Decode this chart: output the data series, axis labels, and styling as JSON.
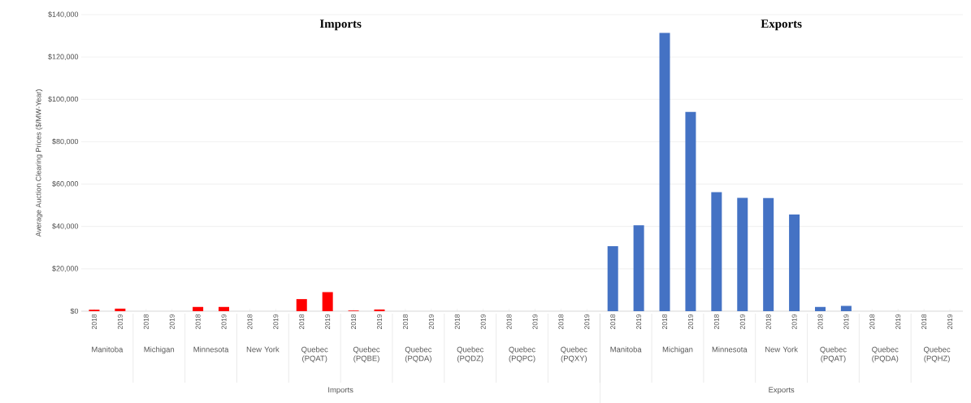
{
  "chart_data": {
    "type": "bar",
    "ylabel": "Average Auction Clearing Prices ($/MW-Year)",
    "categories": [
      "2018",
      "2019",
      "2018",
      "2019",
      "2018",
      "2019",
      "2018",
      "2019",
      "2018",
      "2019",
      "2018",
      "2019",
      "2018",
      "2019",
      "2018",
      "2019",
      "2018",
      "2019",
      "2018",
      "2019",
      "2018",
      "2019",
      "2018",
      "2019",
      "2018",
      "2019",
      "2018",
      "2019",
      "2018",
      "2019",
      "2018",
      "2019",
      "2018",
      "2019"
    ],
    "values": [
      700,
      1200,
      0,
      0,
      2000,
      2000,
      0,
      0,
      5700,
      9000,
      300,
      800,
      0,
      0,
      0,
      0,
      0,
      0,
      0,
      0,
      30700,
      40600,
      131400,
      94100,
      56200,
      53500,
      53400,
      45600,
      2000,
      2500,
      0,
      0,
      0,
      0
    ],
    "colors": [
      "#ff0000",
      "#ff0000",
      "#ff0000",
      "#ff0000",
      "#ff0000",
      "#ff0000",
      "#ff0000",
      "#ff0000",
      "#ff0000",
      "#ff0000",
      "#ff0000",
      "#ff0000",
      "#ff0000",
      "#ff0000",
      "#ff0000",
      "#ff0000",
      "#ff0000",
      "#ff0000",
      "#ff0000",
      "#ff0000",
      "#4472c4",
      "#4472c4",
      "#4472c4",
      "#4472c4",
      "#4472c4",
      "#4472c4",
      "#4472c4",
      "#4472c4",
      "#4472c4",
      "#4472c4",
      "#4472c4",
      "#4472c4",
      "#4472c4",
      "#4472c4"
    ],
    "ylim": [
      0,
      140000
    ],
    "yticks": [
      {
        "value": 0,
        "label": "$0"
      },
      {
        "value": 20000,
        "label": "$20,000"
      },
      {
        "value": 40000,
        "label": "$40,000"
      },
      {
        "value": 60000,
        "label": "$60,000"
      },
      {
        "value": 80000,
        "label": "$80,000"
      },
      {
        "value": 100000,
        "label": "$100,000"
      },
      {
        "value": 120000,
        "label": "$120,000"
      },
      {
        "value": 140000,
        "label": "$140,000"
      }
    ],
    "grid": "y",
    "annotations": [
      "Manitoba",
      "Michigan",
      "Minnesota",
      "New York",
      "Quebec (PQAT)",
      "Quebec (PQBE)",
      "Quebec (PQDA)",
      "Quebec (PQDZ)",
      "Quebec (PQPC)",
      "Quebec (PQXY)",
      "Manitoba",
      "Michigan",
      "Minnesota",
      "New York",
      "Quebec (PQAT)",
      "Quebec (PQDA)",
      "Quebec (PQHZ)",
      "Imports",
      "Exports",
      "Imports",
      "Exports"
    ]
  }
}
